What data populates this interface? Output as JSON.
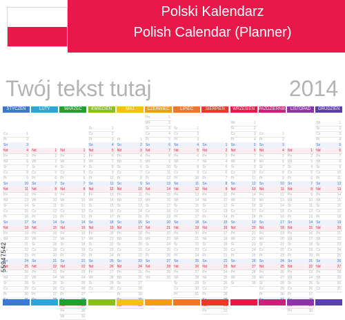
{
  "header": {
    "title_pl": "Polski Kalendarz",
    "title_en": "Polish Calendar (Planner)",
    "flag_colors": {
      "top": "#ffffff",
      "bottom": "#e8194a"
    }
  },
  "placeholder": "Twój tekst tutaj",
  "year": "2014",
  "watermark": "55947542",
  "months": [
    {
      "name": "STYCZEŃ",
      "color": "#3a78d4",
      "start": 3,
      "days": 31
    },
    {
      "name": "LUTY",
      "color": "#2aa7d9",
      "start": 6,
      "days": 28
    },
    {
      "name": "MARZEC",
      "color": "#1fa12f",
      "start": 6,
      "days": 31
    },
    {
      "name": "KWIECIEŃ",
      "color": "#8bbf1b",
      "start": 2,
      "days": 30
    },
    {
      "name": "MAJ",
      "color": "#f2c218",
      "start": 4,
      "days": 31
    },
    {
      "name": "CZERWIEC",
      "color": "#f59a1b",
      "start": 0,
      "days": 30
    },
    {
      "name": "LIPIEC",
      "color": "#f37526",
      "start": 2,
      "days": 31
    },
    {
      "name": "SIERPIEŃ",
      "color": "#e83a2a",
      "start": 5,
      "days": 31
    },
    {
      "name": "WRZESIEŃ",
      "color": "#e8194a",
      "start": 1,
      "days": 30
    },
    {
      "name": "PAŹDZIERNIK",
      "color": "#c9227a",
      "start": 3,
      "days": 31
    },
    {
      "name": "LISTOPAD",
      "color": "#8e34a9",
      "start": 6,
      "days": 30
    },
    {
      "name": "GRUDZIEŃ",
      "color": "#5a3cb3",
      "start": 1,
      "days": 31
    }
  ],
  "weekdays": [
    "Pn",
    "Wt",
    "Śr",
    "Cz",
    "Pt",
    "So",
    "Nd"
  ]
}
